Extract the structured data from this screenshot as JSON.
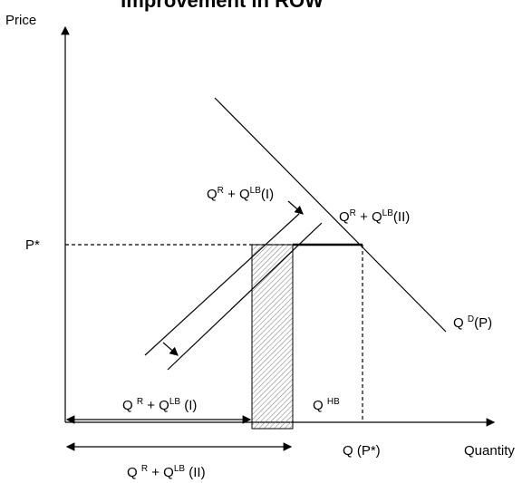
{
  "title": "Improvement in ROW",
  "axes": {
    "y": "Price",
    "x": "Quantity"
  },
  "labels": {
    "p_star": [
      {
        "t": "P*"
      }
    ],
    "q_p_star": [
      {
        "t": "Q (P*)"
      }
    ],
    "demand": [
      {
        "t": "Q "
      },
      {
        "sup": "D"
      },
      {
        "t": "(P)"
      }
    ],
    "supply_one": [
      {
        "t": "Q"
      },
      {
        "sup": "R"
      },
      {
        "t": " + Q"
      },
      {
        "sup": "LB"
      },
      {
        "t": "(I)"
      }
    ],
    "supply_two": [
      {
        "t": "Q"
      },
      {
        "sup": "R"
      },
      {
        "t": " + Q"
      },
      {
        "sup": "LB"
      },
      {
        "t": "(II)"
      }
    ],
    "qty_one": [
      {
        "t": "Q "
      },
      {
        "sup": "R"
      },
      {
        "t": " + Q"
      },
      {
        "sup": "LB"
      },
      {
        "t": " (I)"
      }
    ],
    "qty_hb": [
      {
        "t": "Q "
      },
      {
        "sup": "HB"
      }
    ],
    "qty_two": [
      {
        "t": "Q "
      },
      {
        "sup": "R"
      },
      {
        "t": " + Q"
      },
      {
        "sup": "LB"
      },
      {
        "t": " (II)"
      }
    ]
  }
}
